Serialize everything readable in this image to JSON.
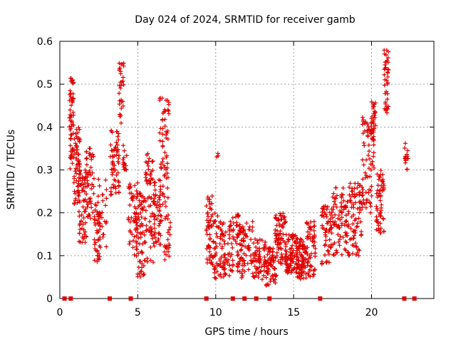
{
  "chart_data": {
    "type": "scatter",
    "title": "Day 024 of 2024, SRMTID for receiver gamb",
    "xlabel": "GPS time / hours",
    "ylabel": "SRMTID / TECUs",
    "xlim": [
      0,
      24
    ],
    "ylim": [
      0,
      0.6
    ],
    "xticks": [
      0,
      5,
      10,
      15,
      20
    ],
    "xtick_labels": [
      "0",
      "5",
      "10",
      "15",
      "20"
    ],
    "yticks": [
      0,
      0.1,
      0.2,
      0.3,
      0.4,
      0.5,
      0.6
    ],
    "ytick_labels": [
      "0",
      "0.1",
      "0.2",
      "0.3",
      "0.4",
      "0.5",
      "0.6"
    ],
    "grid": true,
    "marker": "plus",
    "color": "#e00000",
    "gap_markers_y": 0,
    "gap_markers_x": [
      0.3,
      0.7,
      3.2,
      4.55,
      9.4,
      11.1,
      11.85,
      12.6,
      13.45,
      16.7,
      22.1,
      22.75
    ],
    "clusters": [
      {
        "x": [
          0.6,
          0.9
        ],
        "y": [
          0.3,
          0.52
        ],
        "n": 60
      },
      {
        "x": [
          0.9,
          1.3
        ],
        "y": [
          0.22,
          0.4
        ],
        "n": 60
      },
      {
        "x": [
          1.2,
          1.7
        ],
        "y": [
          0.13,
          0.3
        ],
        "n": 60
      },
      {
        "x": [
          1.7,
          2.2
        ],
        "y": [
          0.18,
          0.36
        ],
        "n": 50
      },
      {
        "x": [
          2.2,
          2.6
        ],
        "y": [
          0.08,
          0.22
        ],
        "n": 40
      },
      {
        "x": [
          2.4,
          3.0
        ],
        "y": [
          0.1,
          0.3
        ],
        "n": 30
      },
      {
        "x": [
          3.2,
          3.8
        ],
        "y": [
          0.24,
          0.4
        ],
        "n": 60
      },
      {
        "x": [
          3.8,
          4.1
        ],
        "y": [
          0.4,
          0.55
        ],
        "n": 30
      },
      {
        "x": [
          4.0,
          4.3
        ],
        "y": [
          0.3,
          0.36
        ],
        "n": 15
      },
      {
        "x": [
          4.4,
          5.0
        ],
        "y": [
          0.1,
          0.28
        ],
        "n": 50
      },
      {
        "x": [
          4.9,
          5.5
        ],
        "y": [
          0.05,
          0.25
        ],
        "n": 70
      },
      {
        "x": [
          5.5,
          6.0
        ],
        "y": [
          0.07,
          0.34
        ],
        "n": 60
      },
      {
        "x": [
          6.0,
          6.5
        ],
        "y": [
          0.12,
          0.28
        ],
        "n": 50
      },
      {
        "x": [
          6.4,
          7.0
        ],
        "y": [
          0.18,
          0.47
        ],
        "n": 70
      },
      {
        "x": [
          6.7,
          7.1
        ],
        "y": [
          0.08,
          0.22
        ],
        "n": 20
      },
      {
        "x": [
          9.4,
          9.8
        ],
        "y": [
          0.08,
          0.24
        ],
        "n": 50
      },
      {
        "x": [
          9.8,
          10.4
        ],
        "y": [
          0.04,
          0.2
        ],
        "n": 50
      },
      {
        "x": [
          10.0,
          10.2
        ],
        "y": [
          0.28,
          0.36
        ],
        "n": 3
      },
      {
        "x": [
          10.4,
          11.0
        ],
        "y": [
          0.05,
          0.18
        ],
        "n": 50
      },
      {
        "x": [
          11.0,
          11.6
        ],
        "y": [
          0.06,
          0.2
        ],
        "n": 50
      },
      {
        "x": [
          11.6,
          12.4
        ],
        "y": [
          0.04,
          0.18
        ],
        "n": 60
      },
      {
        "x": [
          12.4,
          13.2
        ],
        "y": [
          0.04,
          0.14
        ],
        "n": 60
      },
      {
        "x": [
          13.2,
          13.9
        ],
        "y": [
          0.03,
          0.12
        ],
        "n": 60
      },
      {
        "x": [
          13.8,
          14.5
        ],
        "y": [
          0.08,
          0.2
        ],
        "n": 80
      },
      {
        "x": [
          14.5,
          15.2
        ],
        "y": [
          0.06,
          0.15
        ],
        "n": 80
      },
      {
        "x": [
          15.2,
          15.8
        ],
        "y": [
          0.04,
          0.14
        ],
        "n": 80
      },
      {
        "x": [
          15.8,
          16.4
        ],
        "y": [
          0.05,
          0.18
        ],
        "n": 60
      },
      {
        "x": [
          16.8,
          17.5
        ],
        "y": [
          0.08,
          0.22
        ],
        "n": 60
      },
      {
        "x": [
          17.5,
          18.5
        ],
        "y": [
          0.1,
          0.26
        ],
        "n": 80
      },
      {
        "x": [
          18.5,
          19.4
        ],
        "y": [
          0.1,
          0.27
        ],
        "n": 80
      },
      {
        "x": [
          19.4,
          20.0
        ],
        "y": [
          0.2,
          0.43
        ],
        "n": 60
      },
      {
        "x": [
          20.0,
          20.3
        ],
        "y": [
          0.3,
          0.46
        ],
        "n": 40
      },
      {
        "x": [
          20.3,
          20.8
        ],
        "y": [
          0.15,
          0.3
        ],
        "n": 60
      },
      {
        "x": [
          20.8,
          21.1
        ],
        "y": [
          0.43,
          0.58
        ],
        "n": 40
      },
      {
        "x": [
          22.1,
          22.35
        ],
        "y": [
          0.3,
          0.38
        ],
        "n": 15
      }
    ]
  }
}
